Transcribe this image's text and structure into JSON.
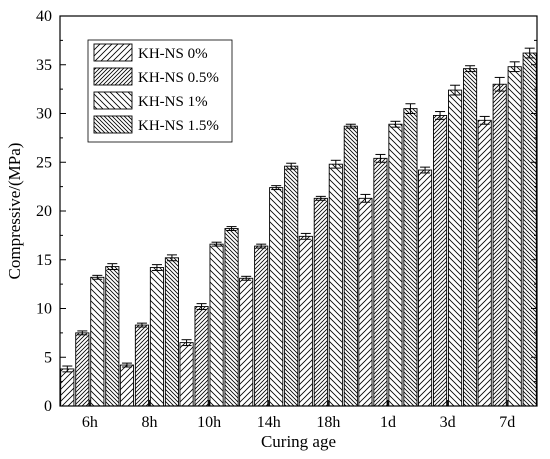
{
  "chart_data": {
    "type": "bar",
    "xlabel": "Curing age",
    "ylabel": "Compressive/(MPa)",
    "ylim": [
      0,
      40
    ],
    "yticks": [
      0,
      5,
      10,
      15,
      20,
      25,
      30,
      35,
      40
    ],
    "grid": false,
    "legend_position": "top-left",
    "categories": [
      "6h",
      "8h",
      "10h",
      "14h",
      "18h",
      "1d",
      "3d",
      "7d"
    ],
    "series": [
      {
        "name": "KH-NS 0%",
        "pattern": "diag-right",
        "values": [
          3.8,
          4.2,
          6.5,
          13.1,
          17.4,
          21.3,
          24.2,
          29.3
        ],
        "errors": [
          0.3,
          0.2,
          0.3,
          0.2,
          0.3,
          0.4,
          0.3,
          0.4
        ]
      },
      {
        "name": "KH-NS 0.5%",
        "pattern": "diag-right-dense",
        "values": [
          7.5,
          8.3,
          10.2,
          16.4,
          21.3,
          25.4,
          29.8,
          33.0
        ],
        "errors": [
          0.2,
          0.2,
          0.3,
          0.2,
          0.2,
          0.4,
          0.4,
          0.7
        ]
      },
      {
        "name": "KH-NS 1%",
        "pattern": "diag-left",
        "values": [
          13.2,
          14.2,
          16.6,
          22.4,
          24.8,
          28.9,
          32.4,
          34.8
        ],
        "errors": [
          0.2,
          0.3,
          0.2,
          0.2,
          0.4,
          0.3,
          0.5,
          0.5
        ]
      },
      {
        "name": "KH-NS 1.5%",
        "pattern": "diag-left-dense",
        "values": [
          14.3,
          15.2,
          18.2,
          24.6,
          28.7,
          30.5,
          34.6,
          36.2
        ],
        "errors": [
          0.3,
          0.3,
          0.2,
          0.3,
          0.2,
          0.5,
          0.3,
          0.5
        ]
      }
    ]
  }
}
